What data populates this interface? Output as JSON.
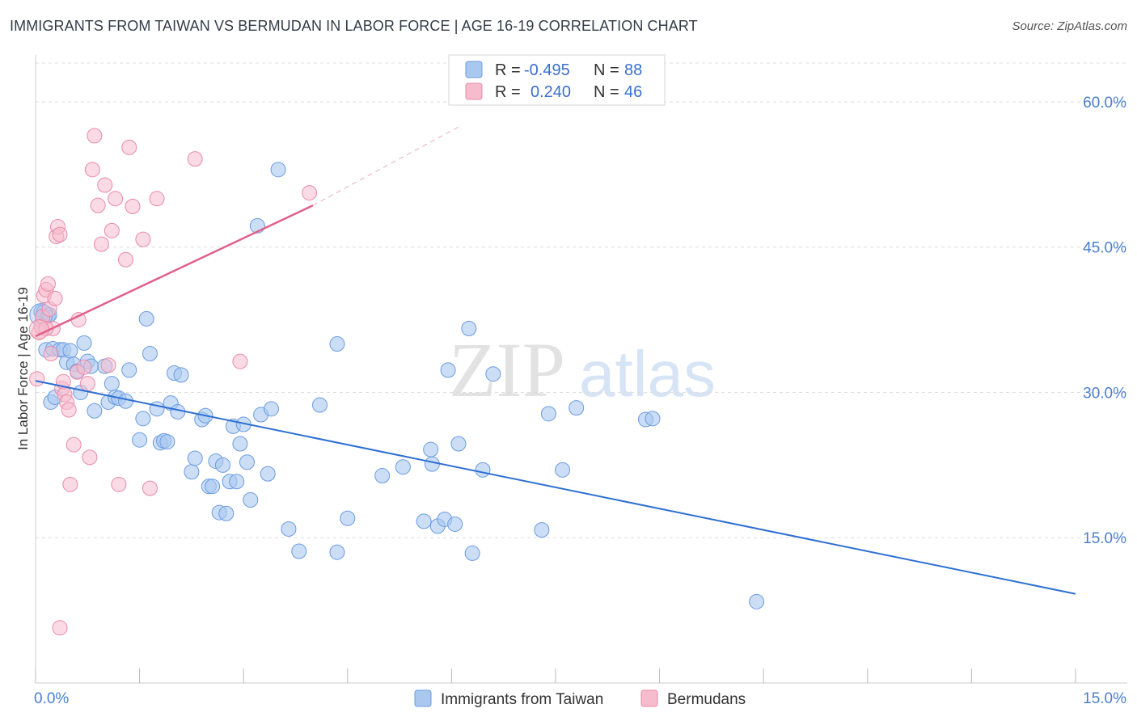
{
  "title": "IMMIGRANTS FROM TAIWAN VS BERMUDAN IN LABOR FORCE | AGE 16-19 CORRELATION CHART",
  "source": "Source: ZipAtlas.com",
  "watermark": {
    "zip": "ZIP",
    "atlas": "atlas"
  },
  "colors": {
    "blue_fill": "#a9c8f0",
    "blue_stroke": "#6b9be0",
    "blue_line": "#2e6fd3",
    "pink_fill": "#f6bccd",
    "pink_stroke": "#e98aa8",
    "pink_line": "#e0608c",
    "grid": "#dddddd",
    "axis_text": "#4a7fd1"
  },
  "legend_box": {
    "row1": {
      "r_label": "R =",
      "r_value": "-0.495",
      "n_label": "N =",
      "n_value": "88"
    },
    "row2": {
      "r_label": "R =",
      "r_value": "0.240",
      "n_label": "N =",
      "n_value": "46"
    }
  },
  "chart_data": {
    "type": "scatter",
    "title": "IMMIGRANTS FROM TAIWAN VS BERMUDAN IN LABOR FORCE | AGE 16-19 CORRELATION CHART",
    "xlabel": "",
    "ylabel": "In Labor Force | Age 16-19",
    "xlim": [
      0,
      15
    ],
    "ylim": [
      0,
      64
    ],
    "x_tick_labels": [
      "0.0%",
      "15.0%"
    ],
    "y_ticks": [
      15,
      30,
      45,
      60
    ],
    "y_tick_labels": [
      "15.0%",
      "30.0%",
      "45.0%",
      "60.0%"
    ],
    "legend_position": "bottom-center",
    "series": [
      {
        "name": "Immigrants from Taiwan",
        "color": "#a9c8f0",
        "R": -0.495,
        "N": 88,
        "trend": {
          "x": [
            0,
            15
          ],
          "y": [
            31.2,
            9.2
          ]
        },
        "points": [
          [
            0.08,
            38.3
          ],
          [
            0.1,
            37.8
          ],
          [
            0.12,
            38.3
          ],
          [
            0.15,
            34.4
          ],
          [
            0.18,
            37.9
          ],
          [
            0.2,
            38.0
          ],
          [
            0.22,
            29.0
          ],
          [
            0.25,
            34.5
          ],
          [
            0.28,
            29.5
          ],
          [
            0.35,
            34.4
          ],
          [
            0.4,
            34.4
          ],
          [
            0.45,
            33.1
          ],
          [
            0.5,
            34.3
          ],
          [
            0.55,
            32.9
          ],
          [
            0.6,
            32.2
          ],
          [
            0.65,
            30.0
          ],
          [
            0.7,
            35.1
          ],
          [
            0.75,
            33.2
          ],
          [
            0.8,
            32.7
          ],
          [
            0.85,
            28.1
          ],
          [
            1.0,
            32.7
          ],
          [
            1.05,
            29.0
          ],
          [
            1.1,
            30.9
          ],
          [
            1.15,
            29.5
          ],
          [
            1.2,
            29.4
          ],
          [
            1.3,
            29.1
          ],
          [
            1.35,
            32.3
          ],
          [
            1.5,
            25.1
          ],
          [
            1.55,
            27.3
          ],
          [
            1.6,
            37.6
          ],
          [
            1.65,
            34.0
          ],
          [
            1.75,
            28.3
          ],
          [
            1.8,
            24.8
          ],
          [
            1.85,
            25.0
          ],
          [
            1.9,
            24.9
          ],
          [
            1.95,
            28.9
          ],
          [
            2.0,
            32.0
          ],
          [
            2.05,
            28.0
          ],
          [
            2.1,
            31.8
          ],
          [
            2.25,
            21.8
          ],
          [
            2.3,
            23.2
          ],
          [
            2.4,
            27.2
          ],
          [
            2.45,
            27.6
          ],
          [
            2.5,
            20.3
          ],
          [
            2.55,
            20.3
          ],
          [
            2.6,
            22.9
          ],
          [
            2.65,
            17.6
          ],
          [
            2.7,
            22.5
          ],
          [
            2.75,
            17.5
          ],
          [
            2.8,
            20.8
          ],
          [
            2.85,
            26.5
          ],
          [
            2.9,
            20.8
          ],
          [
            2.95,
            24.7
          ],
          [
            3.0,
            26.7
          ],
          [
            3.05,
            22.8
          ],
          [
            3.1,
            18.9
          ],
          [
            3.2,
            47.2
          ],
          [
            3.25,
            27.7
          ],
          [
            3.35,
            21.6
          ],
          [
            3.4,
            28.3
          ],
          [
            3.5,
            53.0
          ],
          [
            3.65,
            15.9
          ],
          [
            3.8,
            13.6
          ],
          [
            4.1,
            28.7
          ],
          [
            4.35,
            35.0
          ],
          [
            4.35,
            13.5
          ],
          [
            4.5,
            17.0
          ],
          [
            5.0,
            21.4
          ],
          [
            5.3,
            22.3
          ],
          [
            5.6,
            16.7
          ],
          [
            5.7,
            24.1
          ],
          [
            5.72,
            22.6
          ],
          [
            5.8,
            16.2
          ],
          [
            5.9,
            16.9
          ],
          [
            5.95,
            32.3
          ],
          [
            6.05,
            16.4
          ],
          [
            6.1,
            24.7
          ],
          [
            6.25,
            36.6
          ],
          [
            6.3,
            13.4
          ],
          [
            6.45,
            22.0
          ],
          [
            6.6,
            31.9
          ],
          [
            7.3,
            15.8
          ],
          [
            7.4,
            27.8
          ],
          [
            7.6,
            22.0
          ],
          [
            7.8,
            28.4
          ],
          [
            8.8,
            27.2
          ],
          [
            8.9,
            27.3
          ],
          [
            10.4,
            8.4
          ]
        ]
      },
      {
        "name": "Bermudans",
        "color": "#f6bccd",
        "R": 0.24,
        "N": 46,
        "trend": {
          "x": [
            0,
            4.0
          ],
          "y": [
            35.8,
            49.3
          ]
        },
        "trend_dashed": {
          "x": [
            4.0,
            6.1
          ],
          "y": [
            49.3,
            57.4
          ]
        },
        "points": [
          [
            0.02,
            31.4
          ],
          [
            0.05,
            36.2
          ],
          [
            0.08,
            36.8
          ],
          [
            0.1,
            37.8
          ],
          [
            0.12,
            40.0
          ],
          [
            0.15,
            40.6
          ],
          [
            0.18,
            41.2
          ],
          [
            0.2,
            38.6
          ],
          [
            0.22,
            34.0
          ],
          [
            0.25,
            36.6
          ],
          [
            0.28,
            39.7
          ],
          [
            0.3,
            46.1
          ],
          [
            0.32,
            47.1
          ],
          [
            0.35,
            46.3
          ],
          [
            0.38,
            30.4
          ],
          [
            0.4,
            31.1
          ],
          [
            0.42,
            29.8
          ],
          [
            0.45,
            29.0
          ],
          [
            0.48,
            28.2
          ],
          [
            0.5,
            20.5
          ],
          [
            0.55,
            24.6
          ],
          [
            0.6,
            32.1
          ],
          [
            0.62,
            37.5
          ],
          [
            0.7,
            32.6
          ],
          [
            0.75,
            30.9
          ],
          [
            0.78,
            23.3
          ],
          [
            0.82,
            53.0
          ],
          [
            0.85,
            56.5
          ],
          [
            0.9,
            49.3
          ],
          [
            0.95,
            45.3
          ],
          [
            1.0,
            51.4
          ],
          [
            1.05,
            32.8
          ],
          [
            1.1,
            46.7
          ],
          [
            1.15,
            50.0
          ],
          [
            1.2,
            20.5
          ],
          [
            1.3,
            43.7
          ],
          [
            1.35,
            55.3
          ],
          [
            1.4,
            49.2
          ],
          [
            1.55,
            45.8
          ],
          [
            1.65,
            20.1
          ],
          [
            1.75,
            50.0
          ],
          [
            2.3,
            54.1
          ],
          [
            2.95,
            33.2
          ],
          [
            3.95,
            50.6
          ],
          [
            0.35,
            5.7
          ],
          [
            0.15,
            36.6
          ]
        ]
      }
    ]
  },
  "legend_bottom": [
    {
      "label": "Immigrants from Taiwan"
    },
    {
      "label": "Bermudans"
    }
  ]
}
